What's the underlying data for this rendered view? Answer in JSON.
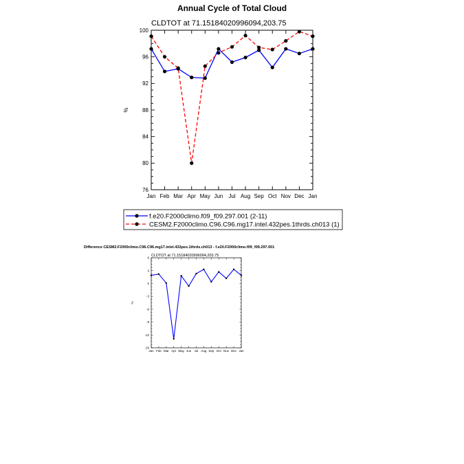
{
  "figure": {
    "title": "Annual Cycle of Total Cloud"
  },
  "chart_data": [
    {
      "type": "line",
      "subtitle": "CLDTOT at 71.15184020996094,203.75",
      "ylabel": "%",
      "xlabel": "",
      "categories": [
        "Jan",
        "Feb",
        "Mar",
        "Apr",
        "May",
        "Jun",
        "Jul",
        "Aug",
        "Sep",
        "Oct",
        "Nov",
        "Dec",
        "Jan"
      ],
      "ylim": [
        76,
        100
      ],
      "yticks": [
        76,
        80,
        84,
        88,
        92,
        96,
        100
      ],
      "grid": false,
      "legend_position": "bottom",
      "series": [
        {
          "name": "f.e20.F2000climo.f09_f09.297.001 (2-11)",
          "color": "#0000ff",
          "dash": "solid",
          "values": [
            97.2,
            93.8,
            94.2,
            92.9,
            92.8,
            97.2,
            95.2,
            95.9,
            97.0,
            94.4,
            97.2,
            96.5,
            97.2
          ]
        },
        {
          "name": "CESM2.F2000climo.C96.C96.mg17.intel.432pes.1thrds.ch013 (1)",
          "color": "#ff0000",
          "dash": "dashed",
          "values": [
            99.1,
            96.0,
            94.3,
            80.0,
            94.6,
            96.6,
            97.5,
            99.2,
            97.4,
            97.1,
            98.4,
            99.8,
            99.1
          ]
        }
      ]
    },
    {
      "type": "line",
      "title": "Difference CESM2.F2000climo.C96.C96.mg17.intel.432pes.1thrds.ch013 - f.e20.F2000climo.f09_f09.297.001",
      "subtitle": "CLDTOT at 71.15184020996094,203.75",
      "ylabel": "%",
      "xlabel": "",
      "categories": [
        "Jan",
        "Feb",
        "Mar",
        "Apr",
        "May",
        "Jun",
        "Jul",
        "Aug",
        "Sep",
        "Oct",
        "Nov",
        "Dec",
        "Jan"
      ],
      "ylim": [
        -15,
        6
      ],
      "yticks": [
        -15,
        -12,
        -9,
        -6,
        -3,
        0,
        3,
        6
      ],
      "grid": false,
      "series": [
        {
          "color": "#0000ff",
          "values": [
            1.9,
            2.2,
            0.1,
            -12.9,
            1.8,
            -0.6,
            2.3,
            3.3,
            0.4,
            2.7,
            1.2,
            3.3,
            1.9
          ]
        }
      ]
    }
  ]
}
